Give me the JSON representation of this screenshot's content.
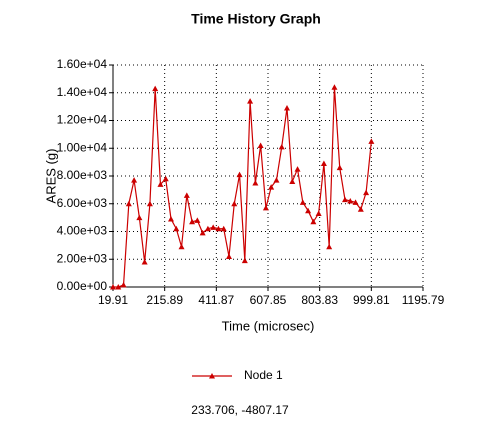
{
  "chart_data": {
    "type": "line",
    "title": "Time History Graph",
    "x_label": "Time (microsec)",
    "y_label": "ARES (g)",
    "x": [
      19.91,
      39.91,
      59.91,
      79.91,
      99.91,
      119.91,
      139.91,
      159.91,
      179.91,
      199.91,
      219.91,
      239.91,
      259.91,
      279.91,
      299.91,
      319.91,
      339.91,
      359.91,
      379.91,
      399.91,
      419.91,
      439.91,
      459.91,
      479.91,
      499.91,
      519.91,
      539.91,
      559.91,
      579.91,
      599.91,
      619.91,
      639.91,
      659.91,
      679.91,
      699.91,
      719.91,
      739.91,
      759.91,
      779.91,
      799.91,
      819.91,
      839.91,
      859.91,
      879.91,
      899.91,
      919.91,
      939.91,
      959.91,
      979.91,
      999.91
    ],
    "series": [
      {
        "name": "Node 1",
        "color": "#cc0000",
        "values": [
          0,
          0,
          150,
          6000,
          7700,
          5000,
          1800,
          6000,
          14300,
          7400,
          7800,
          4900,
          4200,
          2900,
          6600,
          4700,
          4800,
          3900,
          4200,
          4300,
          4200,
          4200,
          2200,
          6000,
          8100,
          1900,
          13400,
          7500,
          10200,
          5700,
          7200,
          7700,
          10100,
          12900,
          7600,
          8500,
          6100,
          5500,
          4700,
          5300,
          8900,
          2900,
          14400,
          8600,
          6300,
          6200,
          6100,
          5600,
          6800,
          10500
        ]
      }
    ],
    "xlim": [
      19.91,
      1195.79
    ],
    "xticks": [
      19.91,
      215.89,
      411.87,
      607.85,
      803.83,
      999.81,
      1195.79
    ],
    "ylim": [
      0,
      16000
    ],
    "yticks": [
      {
        "value": 0,
        "label": "0.00e+00"
      },
      {
        "value": 2000,
        "label": "2.00e+03"
      },
      {
        "value": 4000,
        "label": "4.00e+03"
      },
      {
        "value": 6000,
        "label": "6.00e+03"
      },
      {
        "value": 8000,
        "label": "8.00e+03"
      },
      {
        "value": 10000,
        "label": "1.00e+04"
      },
      {
        "value": 12000,
        "label": "1.20e+04"
      },
      {
        "value": 14000,
        "label": "1.40e+04"
      },
      {
        "value": 16000,
        "label": "1.60e+04"
      }
    ],
    "grid": true,
    "legend": "bottom",
    "cursor_readout": "233.706, -4807.17"
  }
}
